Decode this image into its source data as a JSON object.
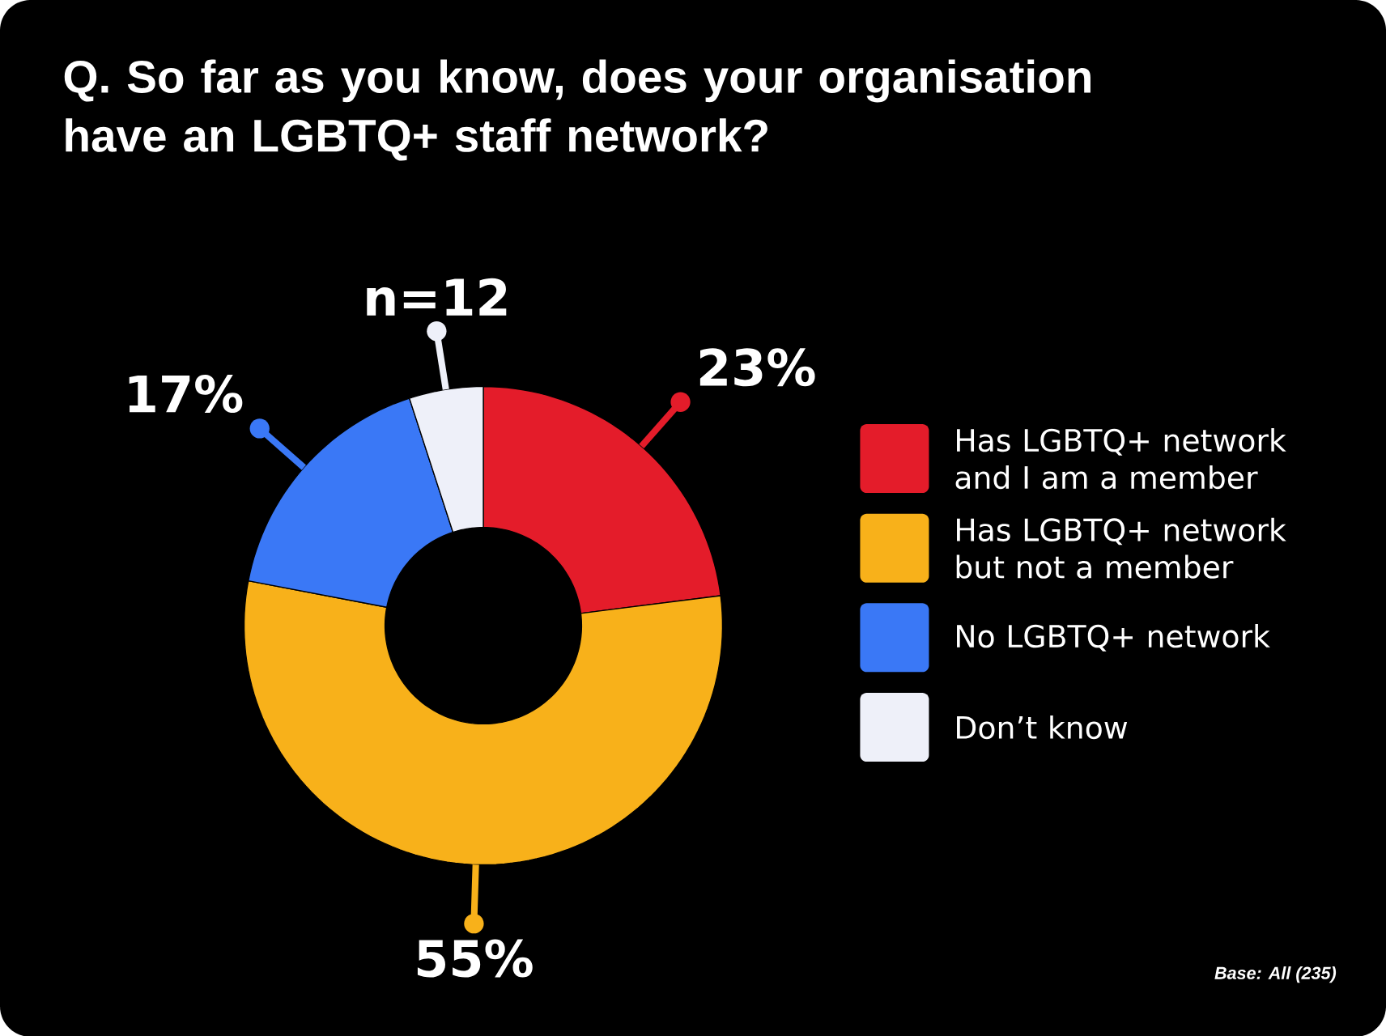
{
  "chart_data": {
    "type": "donut",
    "title": "Q. So far as you know, does your organisation have an LGBTQ+ staff network?",
    "categories": [
      "Has LGBTQ+ network and I am a member",
      "Has LGBTQ+ network but not a member",
      "No LGBTQ+ network",
      "Don’t know"
    ],
    "values": [
      23,
      55,
      17,
      5
    ],
    "value_labels": [
      "23%",
      "55%",
      "17%",
      null
    ],
    "colors": [
      "#e41c2a",
      "#f8b11a",
      "#3a78f6",
      "#eef0f9"
    ],
    "legend": "right",
    "annotations": [
      {
        "text": "n=12",
        "x": "Don’t know"
      },
      "Base: All (235)"
    ]
  }
}
